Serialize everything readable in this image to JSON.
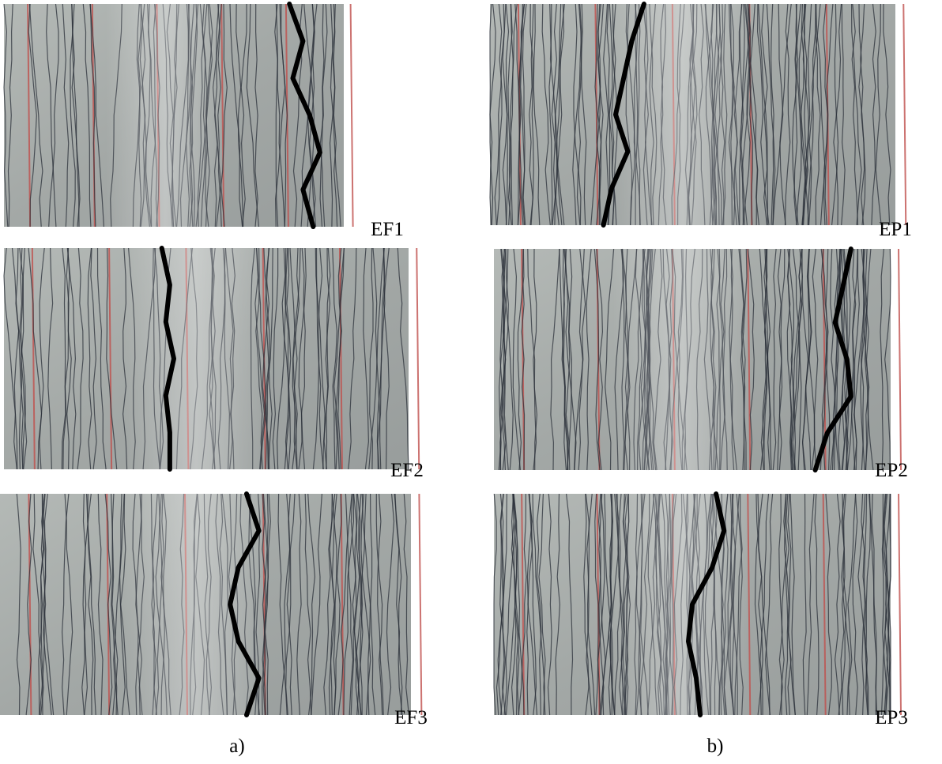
{
  "panels": [
    {
      "label": "a)",
      "images": [
        {
          "label": "EF1"
        },
        {
          "label": "EF2"
        },
        {
          "label": "EF3"
        }
      ]
    },
    {
      "label": "b)",
      "images": [
        {
          "label": "EP1"
        },
        {
          "label": "EP2"
        },
        {
          "label": "EP3"
        }
      ]
    }
  ]
}
